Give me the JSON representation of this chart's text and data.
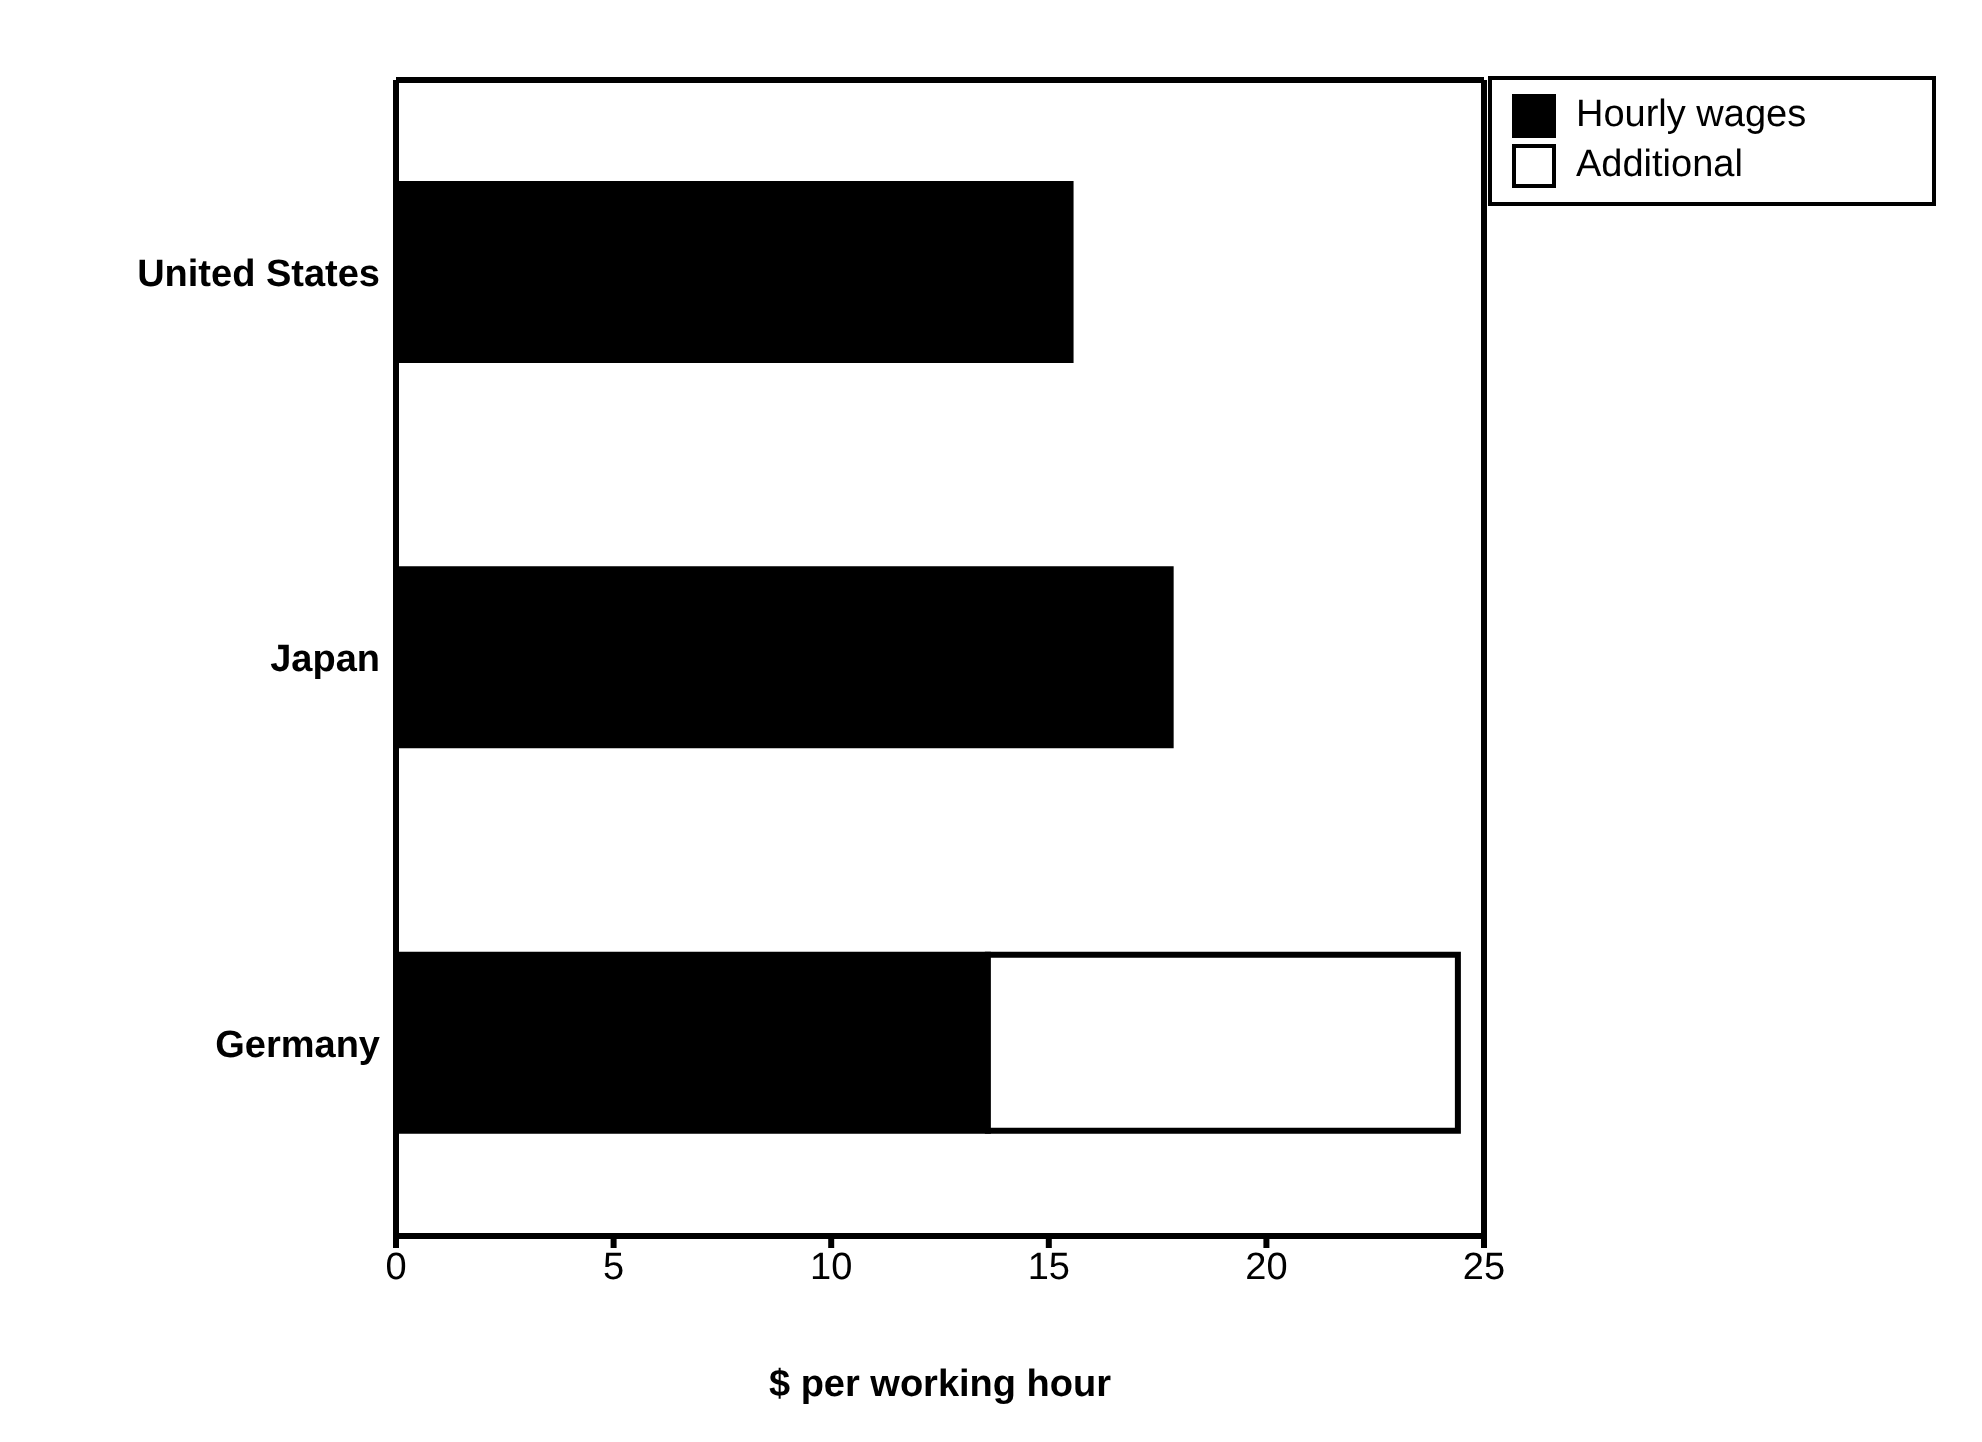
{
  "chart_data": {
    "type": "bar",
    "orientation": "horizontal",
    "stacked": true,
    "xlabel": "$ per working hour",
    "categories": [
      "United States",
      "Japan",
      "Germany"
    ],
    "series": [
      {
        "name": "Hourly wages",
        "color": "#000000",
        "values": [
          15.5,
          17.8,
          13.6
        ]
      },
      {
        "name": "Additional",
        "color": "#ffffff",
        "values": [
          null,
          null,
          10.8
        ]
      }
    ],
    "xlim": [
      0,
      25
    ],
    "xticks": [
      0,
      5,
      10,
      15,
      20,
      25
    ],
    "legend": "top right"
  }
}
